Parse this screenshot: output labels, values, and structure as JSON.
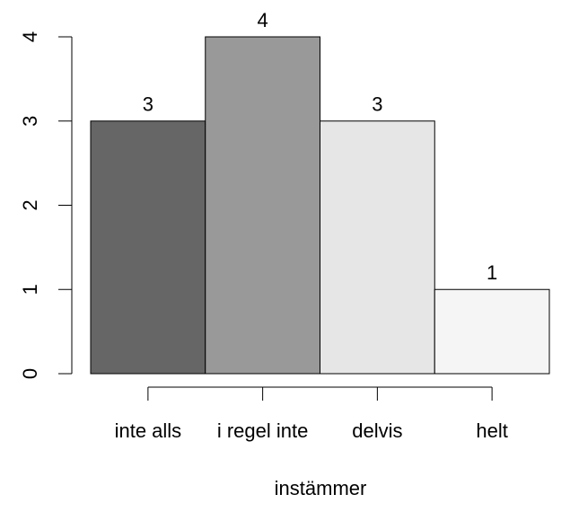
{
  "chart_data": {
    "type": "bar",
    "categories": [
      "inte alls",
      "i regel inte",
      "delvis",
      "helt"
    ],
    "values": [
      3,
      4,
      3,
      1
    ],
    "colors": [
      "#666666",
      "#999999",
      "#e6e6e6",
      "#f5f5f5"
    ],
    "xlabel": "instämmer",
    "ylim": [
      0,
      4
    ],
    "yticks": [
      0,
      1,
      2,
      3,
      4
    ],
    "grid": false
  }
}
